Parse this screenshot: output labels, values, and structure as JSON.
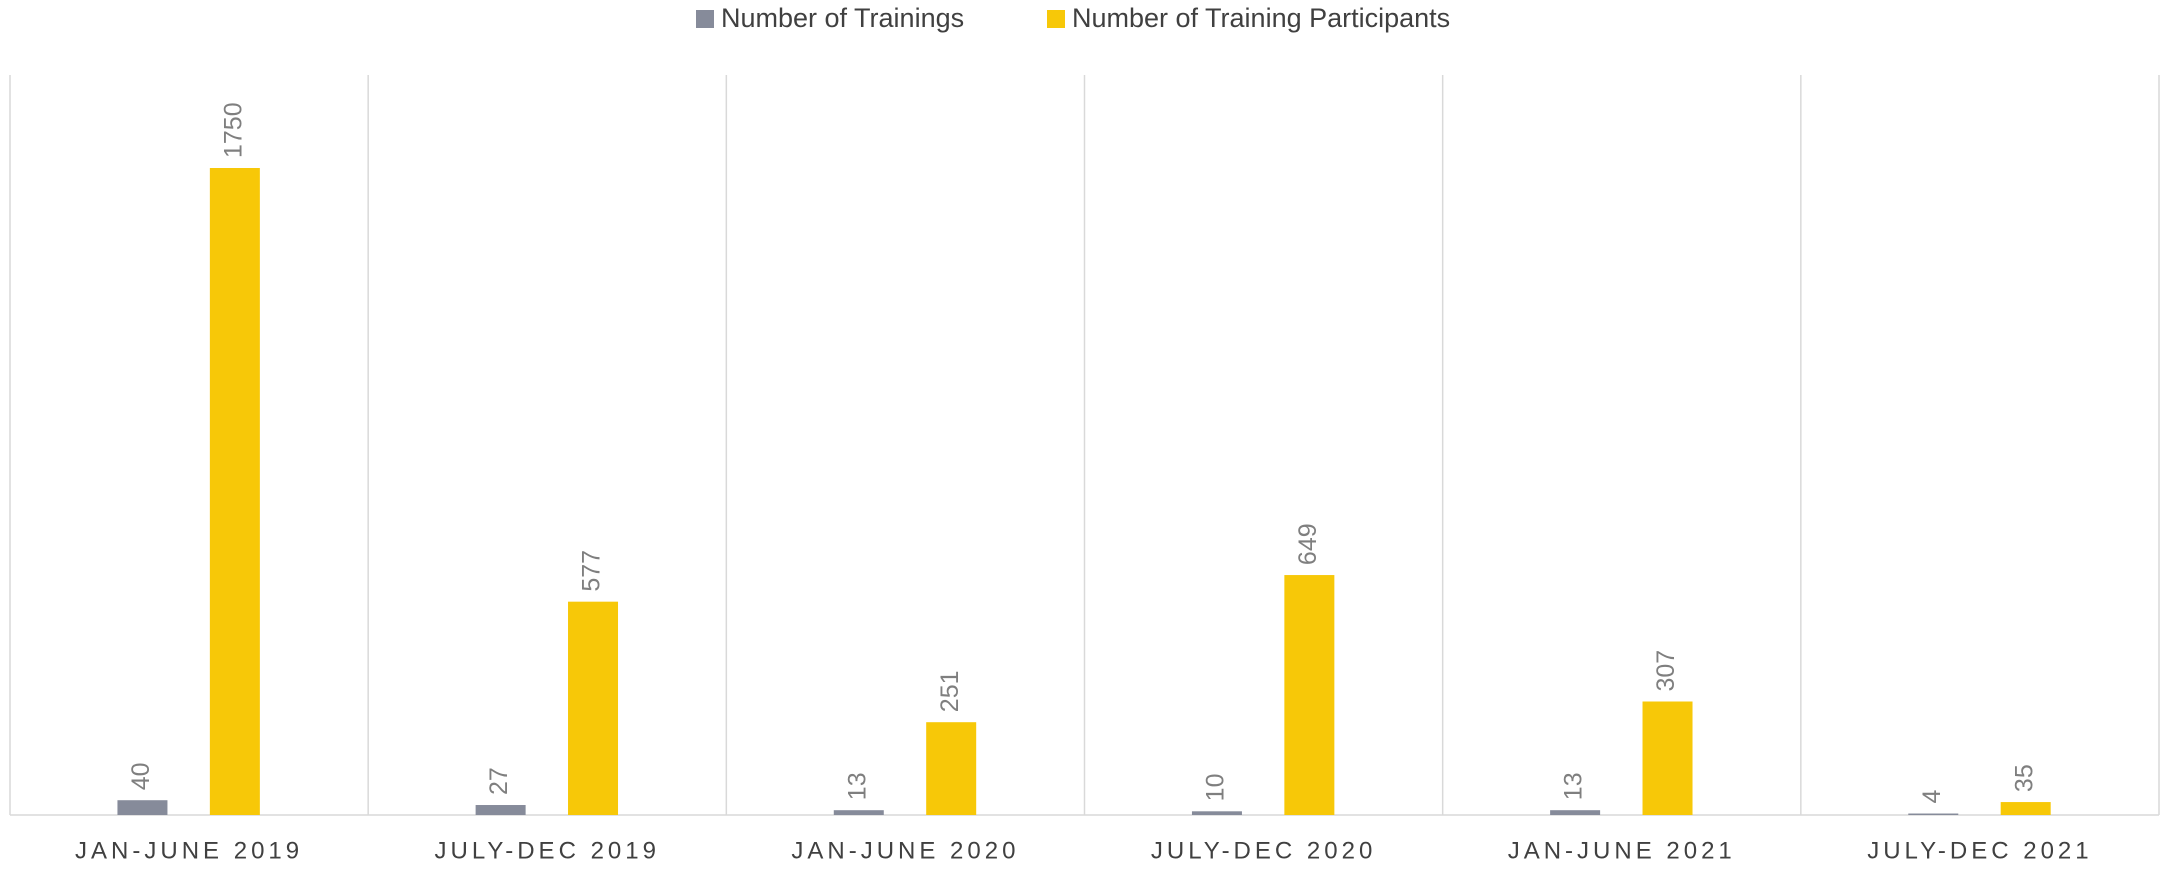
{
  "chart_data": {
    "type": "bar",
    "categories": [
      "JAN-JUNE 2019",
      "JULY-DEC 2019",
      "JAN-JUNE 2020",
      "JULY-DEC 2020",
      "JAN-JUNE 2021",
      "JULY-DEC 2021"
    ],
    "series": [
      {
        "name": "Number of Trainings",
        "color": "#868b9a",
        "values": [
          40,
          27,
          13,
          10,
          13,
          4
        ]
      },
      {
        "name": "Number of Training Participants",
        "color": "#f7c808",
        "values": [
          1750,
          577,
          251,
          649,
          307,
          35
        ]
      }
    ],
    "legend": "top"
  }
}
